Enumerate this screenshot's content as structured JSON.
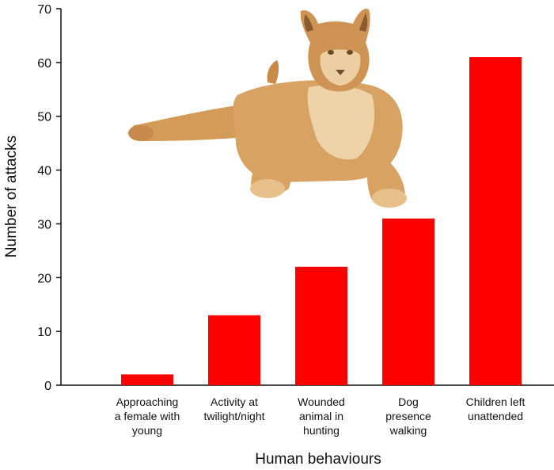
{
  "chart_data": {
    "type": "bar",
    "categories": [
      "Approaching a female with young",
      "Activity at twilight/night",
      "Wounded animal in hunting",
      "Dog presence walking",
      "Children left unattended"
    ],
    "category_lines": [
      [
        "Approaching",
        "a female with",
        "young"
      ],
      [
        "Activity at",
        "twilight/night"
      ],
      [
        "Wounded",
        "animal in",
        "hunting"
      ],
      [
        "Dog",
        "presence",
        "walking"
      ],
      [
        "Children left",
        "unattended"
      ]
    ],
    "values": [
      2,
      13,
      22,
      31,
      61
    ],
    "xlabel": "Human behaviours",
    "ylabel": "Number of attacks",
    "ylim": [
      0,
      70
    ],
    "yticks": [
      0,
      10,
      20,
      30,
      40,
      50,
      60,
      70
    ],
    "bar_color": "#ff0000",
    "grid": false,
    "decoration": "cougar-image"
  }
}
